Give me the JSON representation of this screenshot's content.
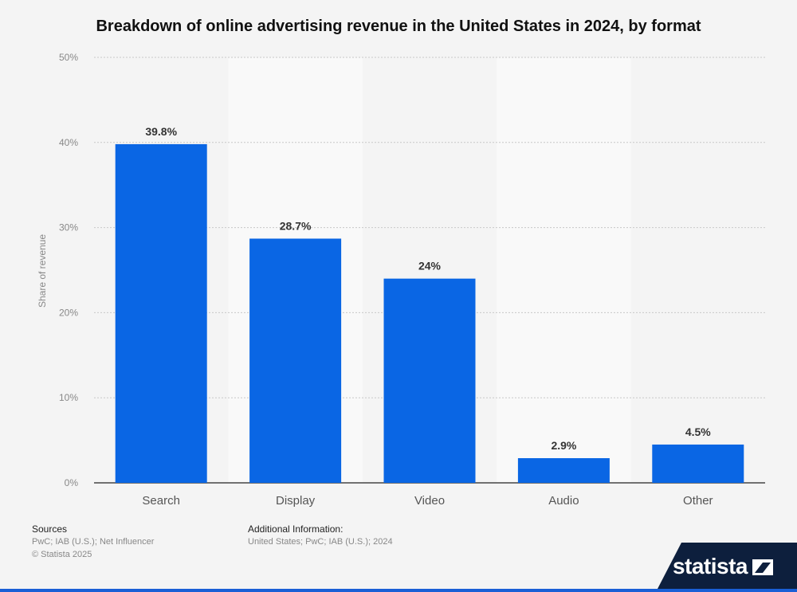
{
  "title": "Breakdown of online advertising revenue in the United States in 2024, by format",
  "chart_data": {
    "type": "bar",
    "categories": [
      "Search",
      "Display",
      "Video",
      "Audio",
      "Other"
    ],
    "values": [
      39.8,
      28.7,
      24,
      2.9,
      4.5
    ],
    "value_labels": [
      "39.8%",
      "28.7%",
      "24%",
      "2.9%",
      "4.5%"
    ],
    "ylabel": "Share of revenue",
    "ylim": [
      0,
      50
    ],
    "yticks": [
      0,
      10,
      20,
      30,
      40,
      50
    ],
    "ytick_labels": [
      "0%",
      "10%",
      "20%",
      "30%",
      "40%",
      "50%"
    ],
    "grid": true,
    "bar_color": "#0a66e4"
  },
  "footer": {
    "sources_heading": "Sources",
    "sources_text": "PwC; IAB (U.S.); Net Influencer",
    "copyright": "© Statista 2025",
    "additional_heading": "Additional Information:",
    "additional_text": "United States; PwC; IAB (U.S.); 2024"
  },
  "logo": {
    "text": "statista",
    "bg_color": "#0d1f3d"
  }
}
